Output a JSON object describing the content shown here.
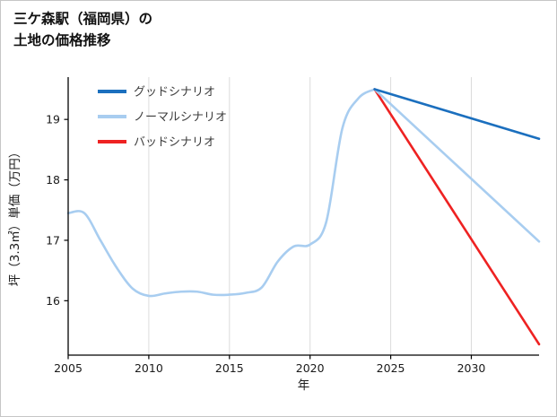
{
  "page": {
    "title_lines": [
      "三ケ森駅（福岡県）の",
      "土地の価格推移"
    ]
  },
  "chart_data": {
    "type": "line",
    "title": "三ケ森駅（福岡県）の土地の価格推移",
    "xlabel": "年",
    "ylabel": "坪（3.3㎡）単価（万円）",
    "xlim": [
      2005,
      2034.2
    ],
    "ylim": [
      15.1,
      19.7
    ],
    "xticks": [
      2005,
      2010,
      2015,
      2020,
      2025,
      2030
    ],
    "yticks": [
      16,
      17,
      18,
      19
    ],
    "grid": "vertical-only",
    "legend_position": "upper-left",
    "colors": {
      "good": "#1b6fbe",
      "normal": "#a8cdf0",
      "bad": "#ee2222",
      "grid": "#dcdcdc",
      "axis": "#000000",
      "tick_text": "#1a1a1a",
      "legend_text": "#3c3c3c"
    },
    "series": [
      {
        "id": "good-scenario",
        "name": "グッドシナリオ",
        "color": "#1b6fbe",
        "in_legend": true,
        "x": [
          2024,
          2034.2
        ],
        "y": [
          19.5,
          18.68
        ]
      },
      {
        "id": "normal-scenario",
        "name": "ノーマルシナリオ",
        "color": "#a8cdf0",
        "in_legend": true,
        "x": [
          2024,
          2034.2
        ],
        "y": [
          19.5,
          16.98
        ]
      },
      {
        "id": "bad-scenario",
        "name": "バッドシナリオ",
        "color": "#ee2222",
        "in_legend": true,
        "x": [
          2024,
          2034.2
        ],
        "y": [
          19.5,
          15.28
        ]
      },
      {
        "id": "history",
        "name": "",
        "color": "#a8cdf0",
        "in_legend": false,
        "x": [
          2005,
          2006,
          2007,
          2008,
          2009,
          2010,
          2011,
          2012,
          2013,
          2014,
          2015,
          2016,
          2017,
          2018,
          2019,
          2020,
          2021,
          2022,
          2023,
          2024
        ],
        "y": [
          17.45,
          17.45,
          17.0,
          16.55,
          16.2,
          16.08,
          16.12,
          16.15,
          16.15,
          16.1,
          16.1,
          16.13,
          16.22,
          16.65,
          16.9,
          16.93,
          17.3,
          18.85,
          19.35,
          19.5
        ]
      }
    ]
  }
}
